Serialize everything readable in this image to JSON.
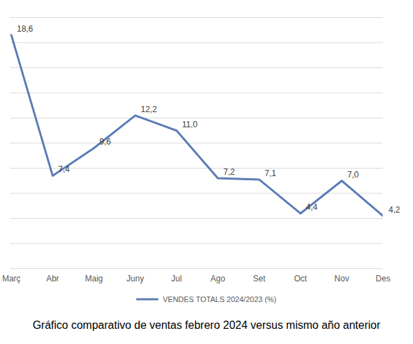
{
  "chart_data": {
    "type": "line",
    "title": "Gráfico comparativo de ventas febrero 2024 versus mismo año anterior",
    "categories": [
      "Març",
      "Abr",
      "Maig",
      "Juny",
      "Jul",
      "Ago",
      "Set",
      "Oct",
      "Nov",
      "Des"
    ],
    "series": [
      {
        "name": "VENDES TOTALS 2024/2023 (%)",
        "color": "#5b7bb5",
        "values": [
          18.6,
          7.4,
          9.6,
          12.2,
          11.0,
          7.2,
          7.1,
          4.4,
          7.0,
          4.2
        ],
        "value_labels": [
          "18,6",
          "7,4",
          "9,6",
          "12,2",
          "11,0",
          "7,2",
          "7,1",
          "4,4",
          "7,0",
          "4,2"
        ]
      }
    ],
    "ylim": [
      0,
      20
    ],
    "yticks": [
      0,
      2,
      4,
      6,
      8,
      10,
      12,
      14,
      16,
      18,
      20
    ],
    "grid": true,
    "legend": "bottom",
    "data_labels": true,
    "tick_labels": "x"
  }
}
